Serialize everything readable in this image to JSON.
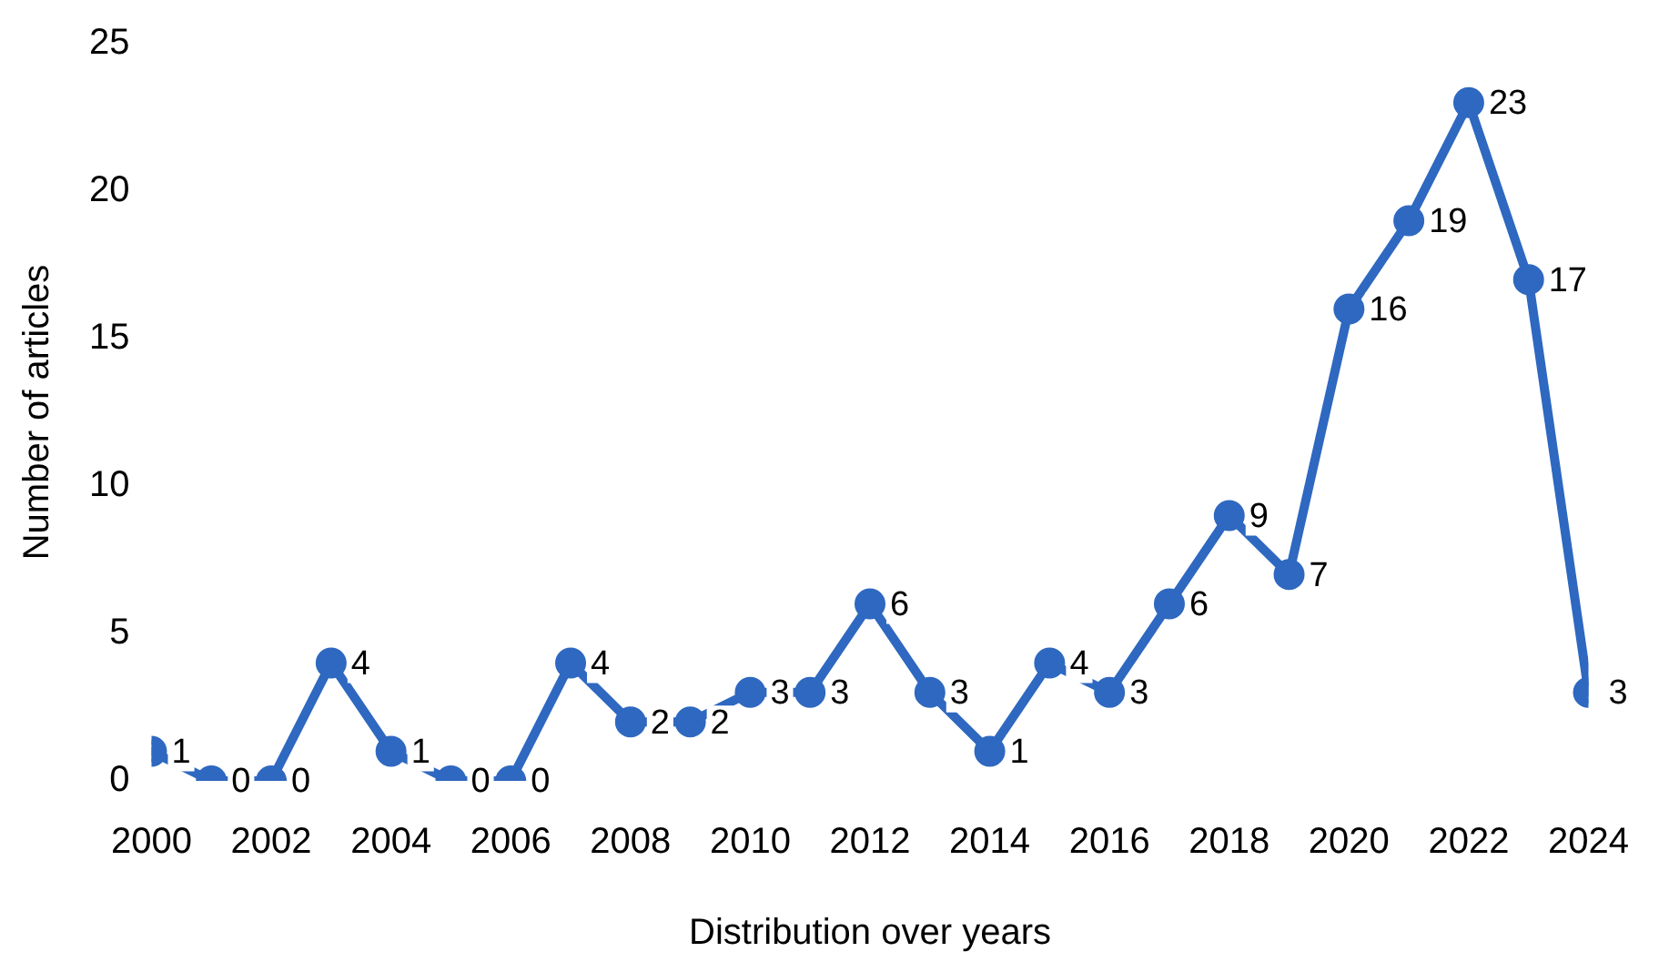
{
  "chart_data": {
    "type": "line",
    "xlabel": "Distribution over years",
    "ylabel": "Number of articles",
    "x": [
      2000,
      2001,
      2002,
      2003,
      2004,
      2005,
      2006,
      2007,
      2008,
      2009,
      2010,
      2011,
      2012,
      2013,
      2014,
      2015,
      2016,
      2017,
      2018,
      2019,
      2020,
      2021,
      2022,
      2023,
      2024
    ],
    "series": [
      {
        "color": "#2e68c0",
        "values": [
          1,
          0,
          0,
          4,
          1,
          0,
          0,
          4,
          2,
          2,
          3,
          3,
          6,
          3,
          1,
          4,
          3,
          6,
          9,
          7,
          16,
          19,
          23,
          17,
          3
        ]
      }
    ],
    "xlim": [
      2000,
      2024
    ],
    "xticks": [
      2000,
      2002,
      2004,
      2006,
      2008,
      2010,
      2012,
      2014,
      2016,
      2018,
      2020,
      2022,
      2024
    ],
    "ylim": [
      0,
      25
    ],
    "yticks": [
      0,
      5,
      10,
      15,
      20,
      25
    ],
    "grid": false,
    "legend": false,
    "marker": "circle",
    "line_style": "solid",
    "data_labels": true
  }
}
